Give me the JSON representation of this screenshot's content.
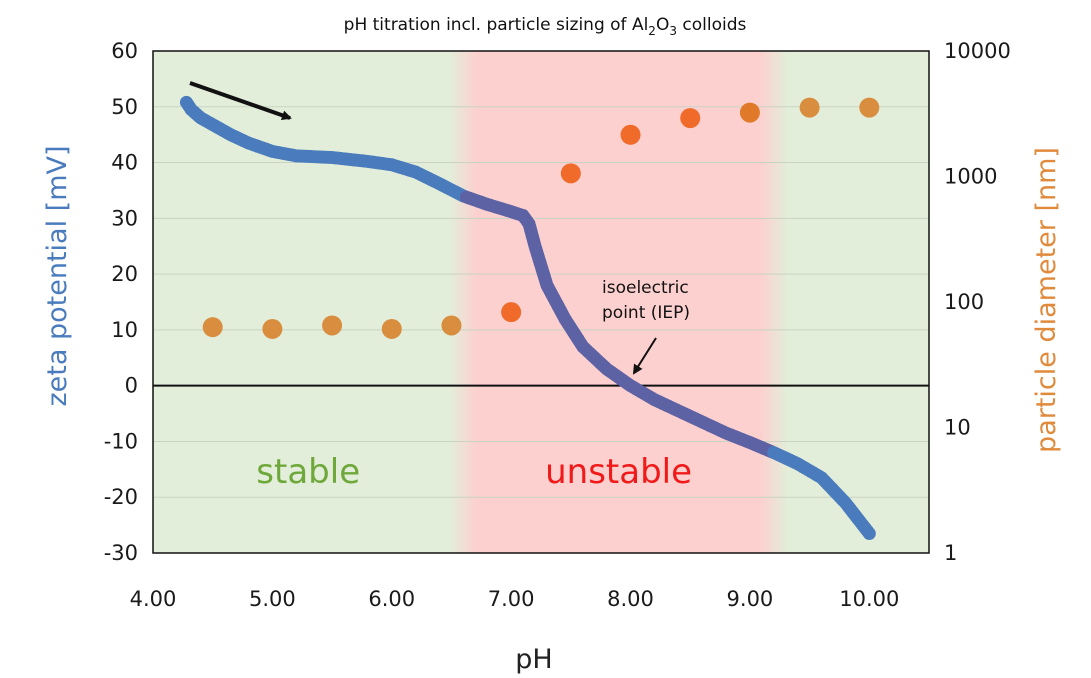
{
  "chart_data": {
    "type": "scatter",
    "title": "pH titration incl. particle sizing of Al",
    "title_sub_1": "2",
    "title_mid": "O",
    "title_sub_2": "3",
    "title_end": " colloids",
    "xlabel": "pH",
    "ylabel_left": "zeta potential  [mV]",
    "ylabel_right": "particle diameter [nm]",
    "xlim": [
      4.0,
      10.5
    ],
    "ylim_left": [
      -30,
      60
    ],
    "ylim_right": [
      1,
      10000
    ],
    "y_right_scale": "log",
    "grid": "horizontal",
    "x_ticks": [
      "4.00",
      "5.00",
      "6.00",
      "7.00",
      "8.00",
      "9.00",
      "10.00"
    ],
    "x_tick_values": [
      4,
      5,
      6,
      7,
      8,
      9,
      10
    ],
    "y_left_ticks": [
      "60",
      "50",
      "40",
      "30",
      "20",
      "10",
      "0",
      "-10",
      "-20",
      "-30"
    ],
    "y_left_tick_values": [
      60,
      50,
      40,
      30,
      20,
      10,
      0,
      -10,
      -20,
      -30
    ],
    "y_right_ticks": [
      "10000",
      "1000",
      "100",
      "10",
      "1"
    ],
    "y_right_tick_values": [
      10000,
      1000,
      100,
      10,
      1
    ],
    "regions": [
      {
        "label": "stable",
        "from": 4.0,
        "to": 6.6,
        "color": "#e2eed9",
        "label_color": "#6fa83a"
      },
      {
        "label": "unstable",
        "from": 6.6,
        "to": 9.2,
        "color": "#fdd0d0",
        "label_color": "#f01a1a"
      },
      {
        "label": "",
        "from": 9.2,
        "to": 10.5,
        "color": "#e2eed9",
        "label_color": ""
      }
    ],
    "annotation": {
      "line1": "isoelectric",
      "line2": "point (IEP)",
      "x": 8.0,
      "y": 0
    },
    "series": [
      {
        "axis": "left",
        "color": "#4a7cbd",
        "color_mid": "#5c62a4",
        "x": [
          4.28,
          4.32,
          4.4,
          4.5,
          4.65,
          4.8,
          5.0,
          5.2,
          5.5,
          5.8,
          6.0,
          6.2,
          6.4,
          6.6,
          6.8,
          7.0,
          7.1,
          7.15,
          7.2,
          7.3,
          7.45,
          7.6,
          7.8,
          8.0,
          8.2,
          8.5,
          8.8,
          9.0,
          9.2,
          9.4,
          9.6,
          9.8,
          10.0
        ],
        "y": [
          50.8,
          49.5,
          48.0,
          46.8,
          45.0,
          43.5,
          42.0,
          41.2,
          40.9,
          40.2,
          39.6,
          38.3,
          36.2,
          34.0,
          32.5,
          31.2,
          30.5,
          29.0,
          25.0,
          18.0,
          12.0,
          7.0,
          3.0,
          0.0,
          -2.5,
          -5.5,
          -8.5,
          -10.2,
          -12.0,
          -14.0,
          -16.5,
          -21.0,
          -26.5
        ]
      },
      {
        "axis": "right",
        "colors": [
          "#d98d3f",
          "#d98d3f",
          "#d98d3f",
          "#d98d3f",
          "#d98d3f",
          "#f06a2a",
          "#f06a2a",
          "#f06a2a",
          "#f06a2a",
          "#e07a2a",
          "#d98d3f",
          "#d98d3f"
        ],
        "x": [
          4.5,
          5.0,
          5.5,
          6.0,
          6.5,
          7.0,
          7.5,
          8.0,
          8.5,
          9.0,
          9.5,
          10.0
        ],
        "y": [
          63,
          61,
          65,
          61,
          65,
          83,
          1060,
          2150,
          2920,
          3230,
          3540,
          3540
        ]
      }
    ]
  }
}
